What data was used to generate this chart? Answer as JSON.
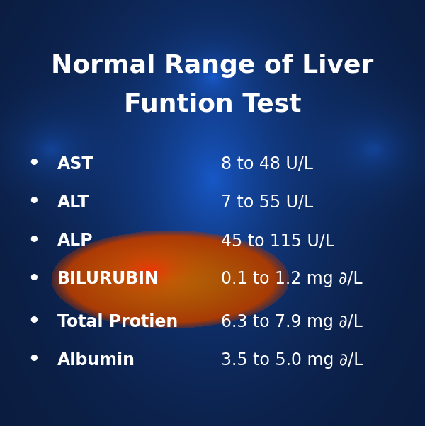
{
  "title_line1": "Normal Range of Liver",
  "title_line2": "Funtion Test",
  "title_color": "#ffffff",
  "title_fontsize": 26,
  "items": [
    {
      "label": "AST",
      "value": "8 to 48 U/L"
    },
    {
      "label": "ALT",
      "value": "7 to 55 U/L"
    },
    {
      "label": "ALP",
      "value": "45 to 115 U/L"
    },
    {
      "label": "BILURUBIN",
      "value": "0.1 to 1.2 mg ∂/L"
    },
    {
      "label": "Total Protien",
      "value": "6.3 to 7.9 mg ∂/L"
    },
    {
      "label": "Albumin",
      "value": "3.5 to 5.0 mg ∂/L"
    }
  ],
  "label_color": "#ffffff",
  "value_color": "#ffffff",
  "bullet_color": "#ffffff",
  "label_fontsize": 17,
  "value_fontsize": 17,
  "figsize": [
    6.0,
    6.02
  ],
  "dpi": 100
}
